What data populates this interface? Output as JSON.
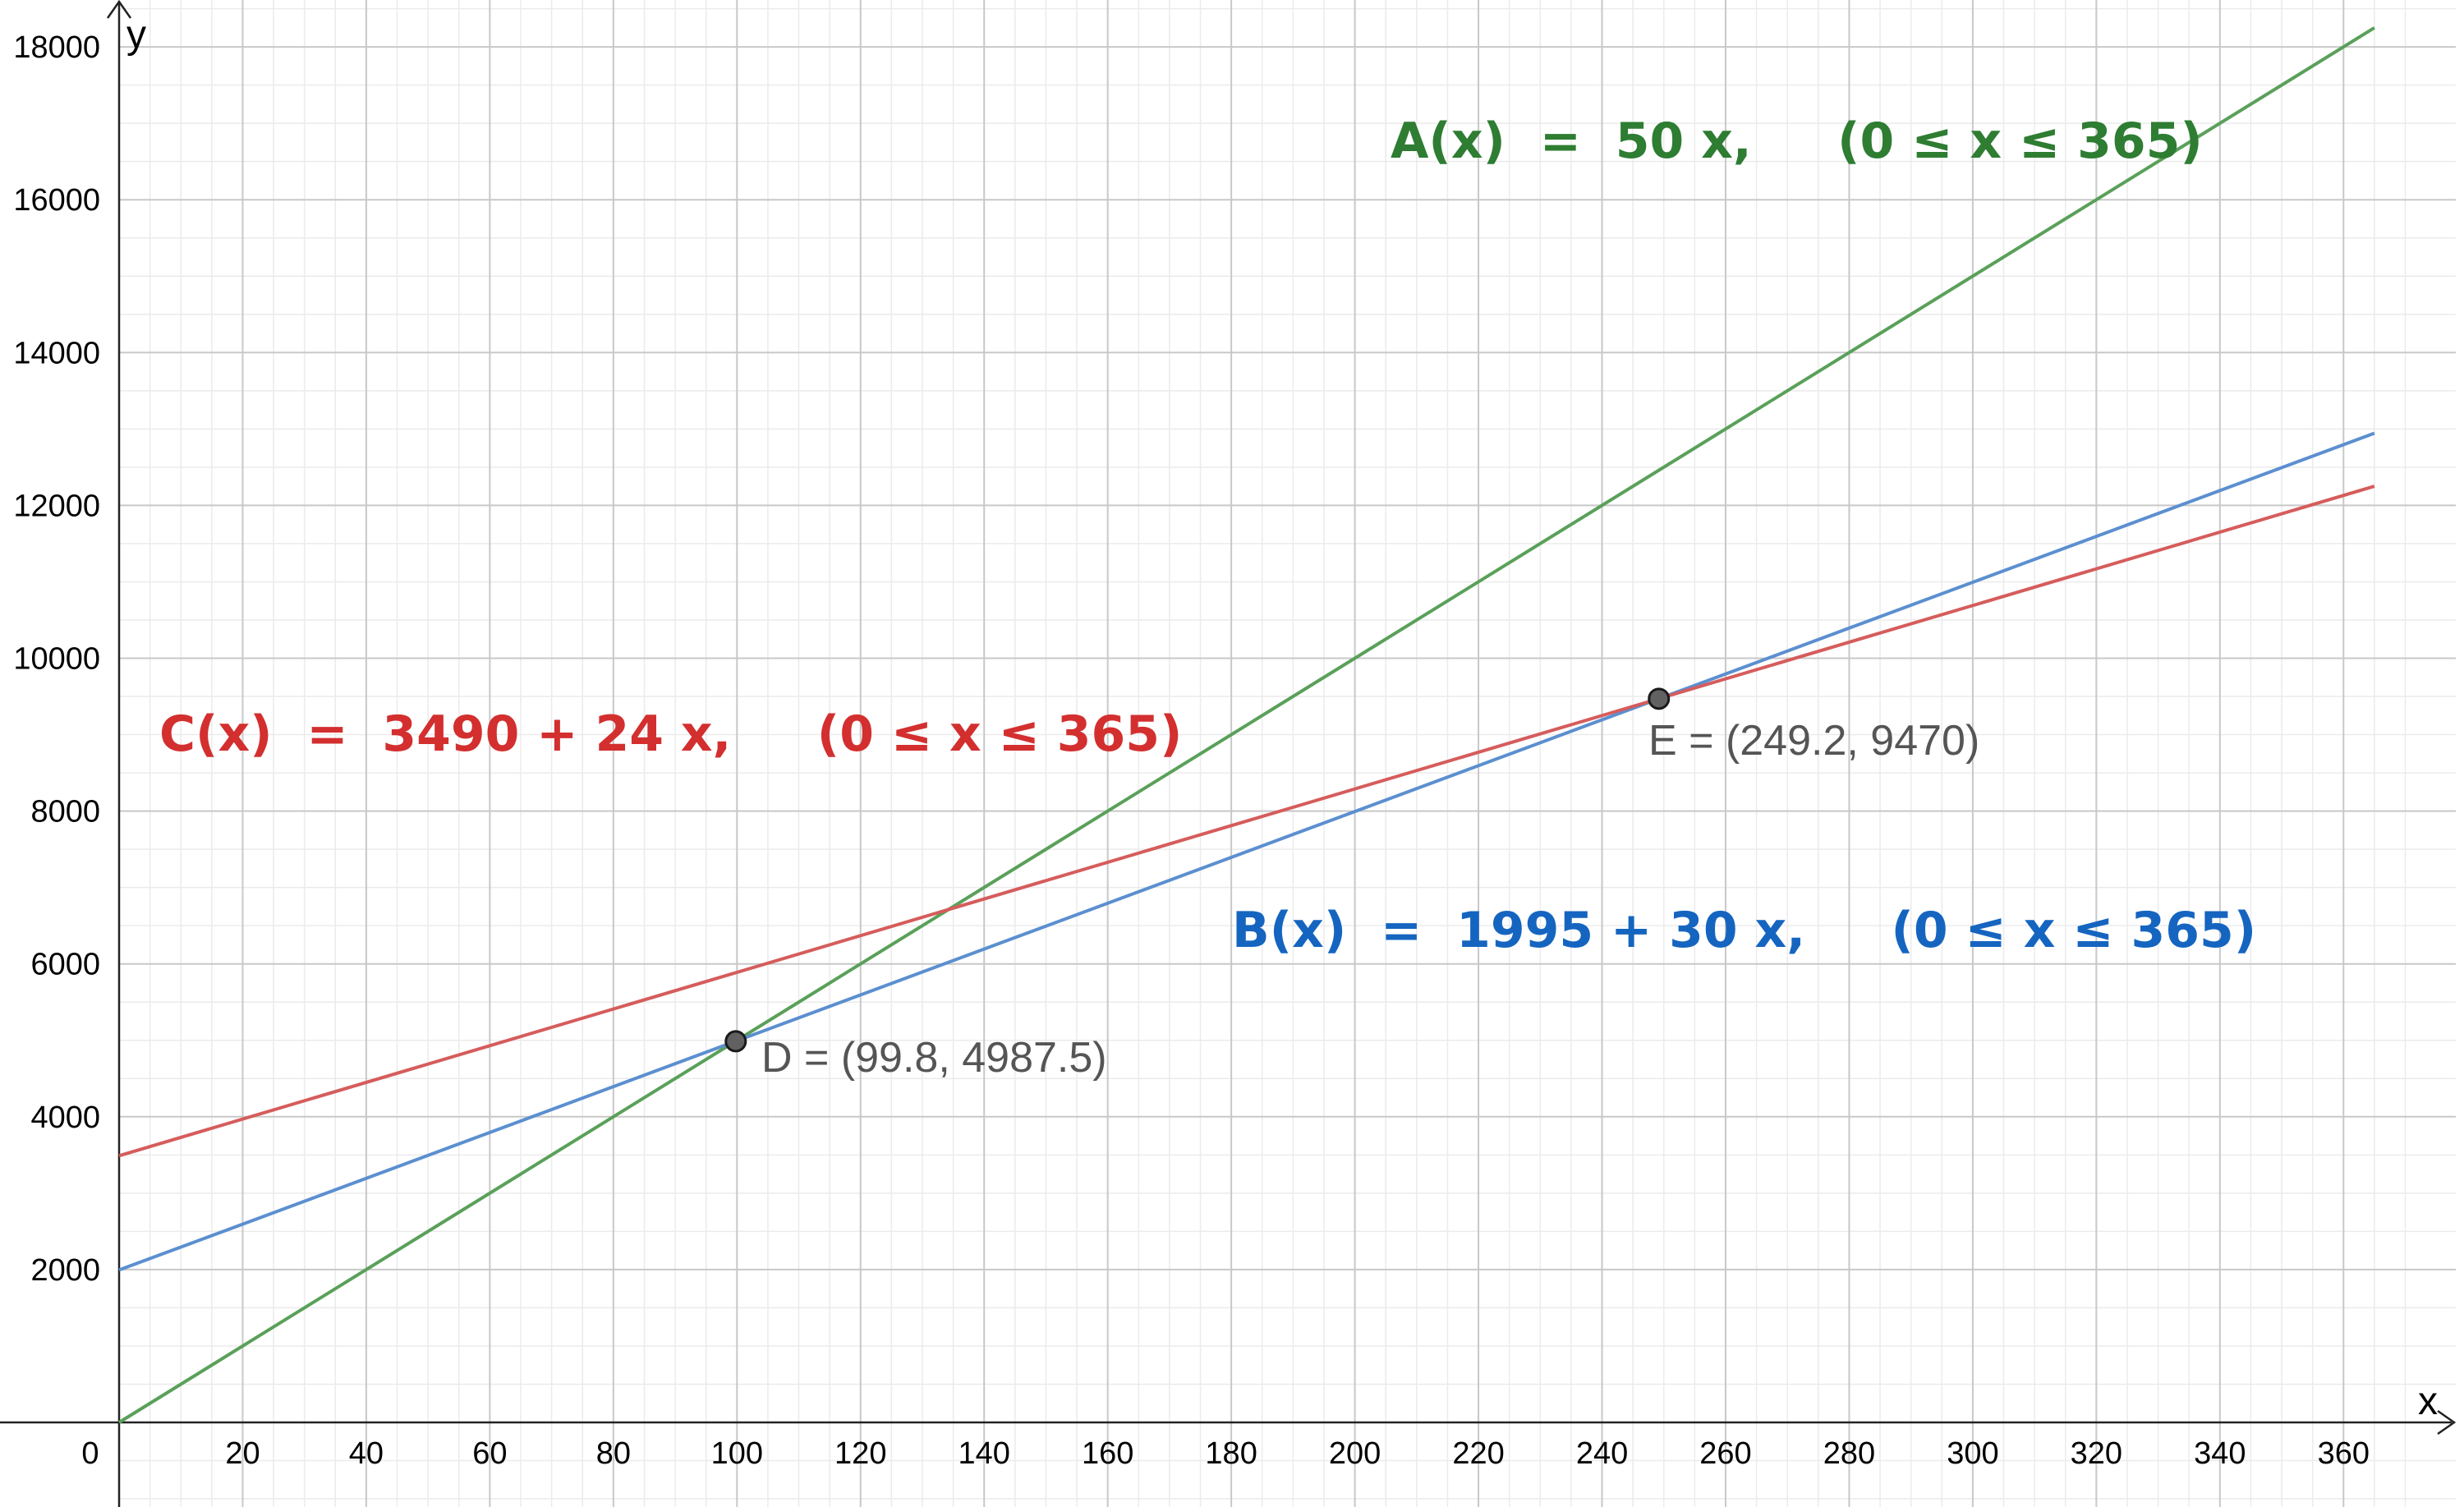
{
  "chart_data": {
    "type": "line",
    "xlabel": "x",
    "ylabel": "y",
    "xlim": [
      0,
      365
    ],
    "ylim": [
      0,
      18000
    ],
    "grid": true,
    "x_ticks": [
      0,
      20,
      40,
      60,
      80,
      100,
      120,
      140,
      160,
      180,
      200,
      220,
      240,
      260,
      280,
      300,
      320,
      340,
      360
    ],
    "y_ticks": [
      2000,
      4000,
      6000,
      8000,
      10000,
      12000,
      14000,
      16000,
      18000
    ],
    "series": [
      {
        "name": "A(x)",
        "color": "#5aa05a",
        "x": [
          0,
          365
        ],
        "y": [
          0,
          18250
        ],
        "equation": "A(x)  =  50 x,     (0 ≤ x ≤ 365)",
        "label_color": "#2e7d32"
      },
      {
        "name": "B(x)",
        "color": "#5b8fd0",
        "x": [
          0,
          365
        ],
        "y": [
          1995,
          12945
        ],
        "equation": "B(x)  =  1995 + 30 x,     (0 ≤ x ≤ 365)",
        "label_color": "#1565c0"
      },
      {
        "name": "C(x)",
        "color": "#d65c5c",
        "x": [
          0,
          365
        ],
        "y": [
          3490,
          12250
        ],
        "equation": "C(x)  =  3490 + 24 x,     (0 ≤ x ≤ 365)",
        "label_color": "#d32f2f"
      }
    ],
    "points": [
      {
        "name": "D",
        "x": 99.8,
        "y": 4987.5,
        "label": "D = (99.8, 4987.5)"
      },
      {
        "name": "E",
        "x": 249.2,
        "y": 9470,
        "label": "E = (249.2, 9470)"
      }
    ]
  }
}
